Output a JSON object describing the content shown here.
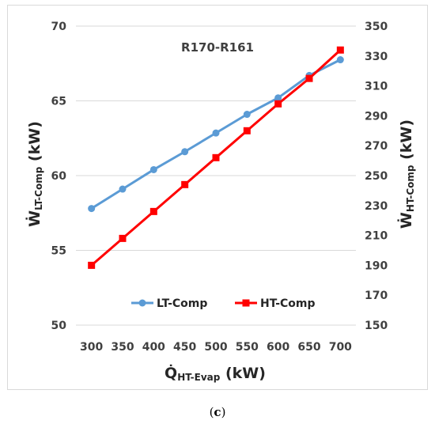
{
  "chart_data": {
    "type": "line",
    "title": "R170-R161",
    "x": [
      300,
      350,
      400,
      450,
      500,
      550,
      600,
      650,
      700
    ],
    "x_ticks": [
      "300",
      "350",
      "400",
      "450",
      "500",
      "550",
      "600",
      "650",
      "700"
    ],
    "xlim": [
      275,
      725
    ],
    "xlabel": {
      "main": "Q̇",
      "sub": "HT-Evap",
      "unit": " (kW)"
    },
    "ylabel_left": {
      "main": "Ẇ",
      "sub": "LT-Comp",
      "unit": " (kW)"
    },
    "ylabel_right": {
      "main": "Ẇ",
      "sub": "HT-Comp",
      "unit": " (kW)"
    },
    "ylim_left": [
      50,
      70
    ],
    "ylim_right": [
      150,
      350
    ],
    "yticks_left": [
      "50",
      "55",
      "60",
      "65",
      "70"
    ],
    "yticks_right": [
      "150",
      "170",
      "190",
      "210",
      "230",
      "250",
      "270",
      "290",
      "310",
      "330",
      "350"
    ],
    "grid": "horizontal",
    "legend_position": "bottom",
    "series": [
      {
        "name": "LT-Comp",
        "axis": "left",
        "marker": "circle",
        "color": "#5b9bd5",
        "values": [
          57.8,
          59.1,
          60.4,
          61.6,
          62.85,
          64.1,
          65.2,
          66.7,
          67.75
        ]
      },
      {
        "name": "HT-Comp",
        "axis": "right",
        "marker": "square",
        "color": "#ff0000",
        "values": [
          190,
          208,
          226,
          244,
          262,
          280,
          298,
          315,
          334
        ]
      }
    ]
  },
  "caption": {
    "open": "(",
    "letter": "c",
    "close": ")"
  }
}
